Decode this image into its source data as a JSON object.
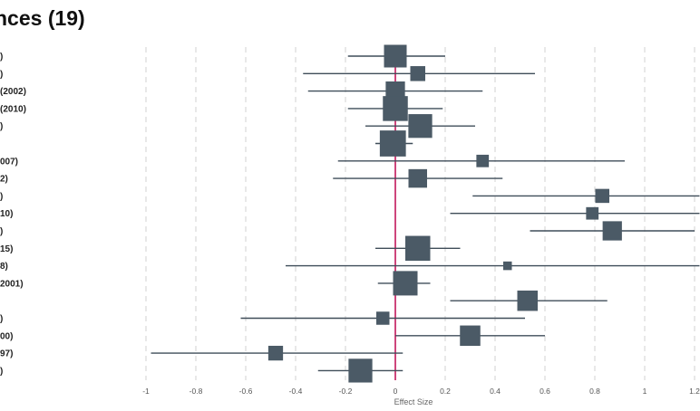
{
  "header": {
    "title": "nces (19)"
  },
  "chart_data": {
    "type": "forest",
    "xlabel": "Effect Size",
    "xlim": [
      -1,
      1.2
    ],
    "xticks": [
      -1,
      -0.8,
      -0.6,
      -0.4,
      -0.2,
      0,
      0.2,
      0.4,
      0.6,
      0.8,
      1,
      1.2
    ],
    "grid": "vertical dashed",
    "reference_line": 0,
    "colors": {
      "marker": "#4b5a66",
      "line": "#3f4d59",
      "reference": "#c2185b",
      "grid": "#d0d0d0"
    },
    "studies": [
      {
        "label": ")",
        "estimate": 0.0,
        "ci": [
          -0.19,
          0.2
        ],
        "weight": 1.0
      },
      {
        "label": ")",
        "estimate": 0.09,
        "ci": [
          -0.37,
          0.56
        ],
        "weight": 0.66
      },
      {
        "label": "(2002)",
        "estimate": 0.0,
        "ci": [
          -0.35,
          0.35
        ],
        "weight": 0.85
      },
      {
        "label": " (2010)",
        "estimate": 0.0,
        "ci": [
          -0.19,
          0.19
        ],
        "weight": 1.1
      },
      {
        "label": ")",
        "estimate": 0.1,
        "ci": [
          -0.12,
          0.32
        ],
        "weight": 1.05
      },
      {
        "label": "",
        "estimate": -0.01,
        "ci": [
          -0.08,
          0.07
        ],
        "weight": 1.15
      },
      {
        "label": "007)",
        "estimate": 0.35,
        "ci": [
          -0.23,
          0.92
        ],
        "weight": 0.55
      },
      {
        "label": "2)",
        "estimate": 0.09,
        "ci": [
          -0.25,
          0.43
        ],
        "weight": 0.82
      },
      {
        "label": ")",
        "estimate": 0.83,
        "ci": [
          0.31,
          1.22
        ],
        "weight": 0.62
      },
      {
        "label": "10)",
        "estimate": 0.79,
        "ci": [
          0.22,
          1.22
        ],
        "weight": 0.55
      },
      {
        "label": ")",
        "estimate": 0.87,
        "ci": [
          0.54,
          1.2
        ],
        "weight": 0.85
      },
      {
        "label": "15)",
        "estimate": 0.09,
        "ci": [
          -0.08,
          0.26
        ],
        "weight": 1.1
      },
      {
        "label": "8)",
        "estimate": 0.45,
        "ci": [
          -0.44,
          1.22
        ],
        "weight": 0.38
      },
      {
        "label": "2001)",
        "estimate": 0.04,
        "ci": [
          -0.07,
          0.14
        ],
        "weight": 1.08
      },
      {
        "label": "",
        "estimate": 0.53,
        "ci": [
          0.22,
          0.85
        ],
        "weight": 0.9
      },
      {
        "label": ")",
        "estimate": -0.05,
        "ci": [
          -0.62,
          0.52
        ],
        "weight": 0.58
      },
      {
        "label": "00)",
        "estimate": 0.3,
        "ci": [
          0.0,
          0.6
        ],
        "weight": 0.9
      },
      {
        "label": "97)",
        "estimate": -0.48,
        "ci": [
          -0.98,
          0.03
        ],
        "weight": 0.65
      },
      {
        "label": ")",
        "estimate": -0.14,
        "ci": [
          -0.31,
          0.03
        ],
        "weight": 1.05
      }
    ]
  }
}
